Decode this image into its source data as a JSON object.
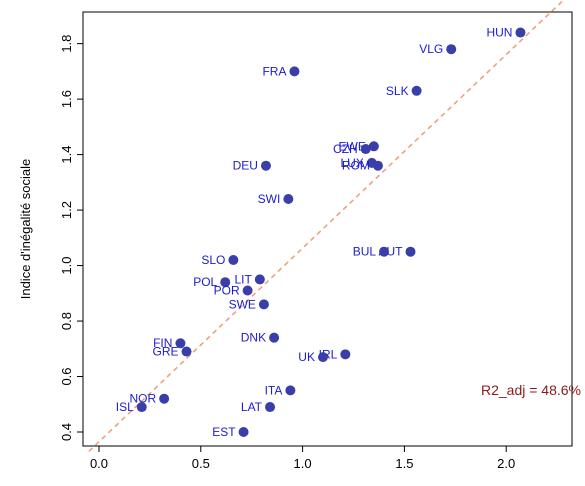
{
  "chart_data": {
    "type": "scatter",
    "title": "",
    "xlabel": "",
    "ylabel": "Indice d'inégalité sociale",
    "xlim": [
      -0.05,
      2.3
    ],
    "ylim": [
      0.35,
      1.9
    ],
    "xticks": [
      0.0,
      0.5,
      1.0,
      1.5,
      2.0
    ],
    "xtick_labels": [
      "0.0",
      "0.5",
      "1.0",
      "1.5",
      "2.0"
    ],
    "yticks": [
      0.4,
      0.6,
      0.8,
      1.0,
      1.2,
      1.4,
      1.6,
      1.8
    ],
    "ytick_labels": [
      "0.4",
      "0.6",
      "0.8",
      "1.0",
      "1.2",
      "1.4",
      "1.6",
      "1.8"
    ],
    "grid": false,
    "point_color": "#3a3fa8",
    "label_color": "#1c1ccc",
    "fit_line": {
      "color": "#f0a080",
      "style": "dashed",
      "x": [
        -0.05,
        2.3
      ],
      "y": [
        0.33,
        1.97
      ]
    },
    "annotation": {
      "text": "R2_adj = 48.6%",
      "color": "#8b1a1a"
    },
    "points": [
      {
        "label": "HUN",
        "x": 2.07,
        "y": 1.84,
        "side": "left"
      },
      {
        "label": "VLG",
        "x": 1.73,
        "y": 1.78,
        "side": "left"
      },
      {
        "label": "FRA",
        "x": 0.96,
        "y": 1.7,
        "side": "left"
      },
      {
        "label": "SLK",
        "x": 1.56,
        "y": 1.63,
        "side": "left"
      },
      {
        "label": "EWE",
        "x": 1.35,
        "y": 1.43,
        "side": "left"
      },
      {
        "label": "CZH",
        "x": 1.31,
        "y": 1.42,
        "side": "left"
      },
      {
        "label": "LUX",
        "x": 1.34,
        "y": 1.37,
        "side": "left"
      },
      {
        "label": "ROM",
        "x": 1.37,
        "y": 1.36,
        "side": "left"
      },
      {
        "label": "DEU",
        "x": 0.82,
        "y": 1.36,
        "side": "left"
      },
      {
        "label": "SWI",
        "x": 0.93,
        "y": 1.24,
        "side": "left"
      },
      {
        "label": "AUT",
        "x": 1.53,
        "y": 1.05,
        "side": "left"
      },
      {
        "label": "BUL",
        "x": 1.4,
        "y": 1.05,
        "side": "left"
      },
      {
        "label": "SLO",
        "x": 0.66,
        "y": 1.02,
        "side": "left"
      },
      {
        "label": "LIT",
        "x": 0.79,
        "y": 0.95,
        "side": "left"
      },
      {
        "label": "POL",
        "x": 0.62,
        "y": 0.94,
        "side": "left"
      },
      {
        "label": "POR",
        "x": 0.73,
        "y": 0.91,
        "side": "left"
      },
      {
        "label": "SWE",
        "x": 0.81,
        "y": 0.86,
        "side": "left"
      },
      {
        "label": "DNK",
        "x": 0.86,
        "y": 0.74,
        "side": "left"
      },
      {
        "label": "FIN",
        "x": 0.4,
        "y": 0.72,
        "side": "left"
      },
      {
        "label": "GRE",
        "x": 0.43,
        "y": 0.69,
        "side": "left"
      },
      {
        "label": "IRL",
        "x": 1.21,
        "y": 0.68,
        "side": "left"
      },
      {
        "label": "UK",
        "x": 1.1,
        "y": 0.67,
        "side": "left"
      },
      {
        "label": "ITA",
        "x": 0.94,
        "y": 0.55,
        "side": "left"
      },
      {
        "label": "NOR",
        "x": 0.32,
        "y": 0.52,
        "side": "left"
      },
      {
        "label": "ISL",
        "x": 0.21,
        "y": 0.49,
        "side": "left"
      },
      {
        "label": "LAT",
        "x": 0.84,
        "y": 0.49,
        "side": "left"
      },
      {
        "label": "EST",
        "x": 0.71,
        "y": 0.4,
        "side": "left"
      }
    ]
  }
}
